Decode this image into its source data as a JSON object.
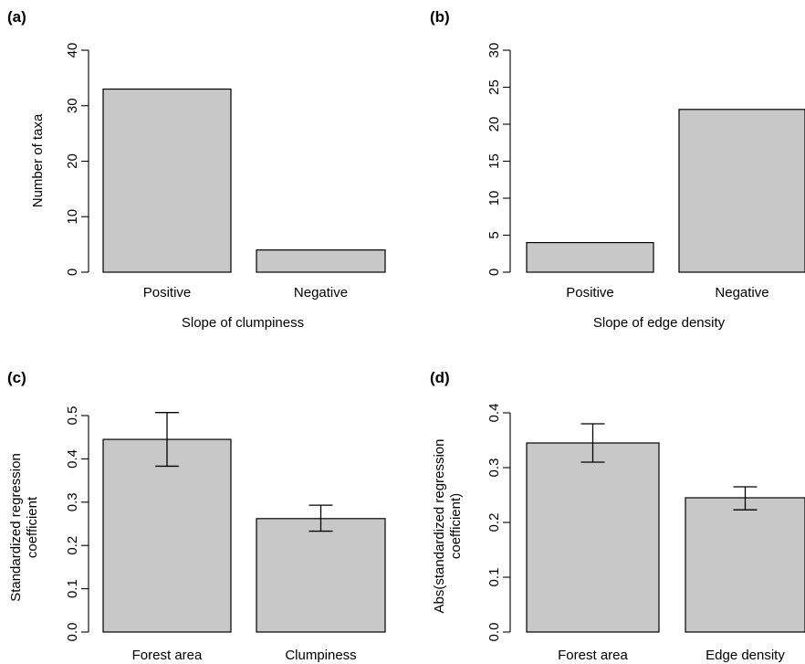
{
  "chart_data": [
    {
      "type": "bar",
      "panel_label": "(a)",
      "categories": [
        "Positive",
        "Negative"
      ],
      "values": [
        33,
        4
      ],
      "xlabel": "Slope of clumpiness",
      "ylabel": "Number of taxa",
      "ylim": [
        0,
        40
      ],
      "yticks": [
        0,
        10,
        20,
        30,
        40
      ],
      "ytick_labels": [
        "0",
        "10",
        "20",
        "30",
        "40"
      ],
      "grid": false,
      "bar_color": "#c8c8c8"
    },
    {
      "type": "bar",
      "panel_label": "(b)",
      "categories": [
        "Positive",
        "Negative"
      ],
      "values": [
        4,
        22
      ],
      "xlabel": "Slope of edge density",
      "ylabel": "",
      "ylim": [
        0,
        30
      ],
      "yticks": [
        0,
        5,
        10,
        15,
        20,
        25,
        30
      ],
      "ytick_labels": [
        "0",
        "5",
        "10",
        "15",
        "20",
        "25",
        "30"
      ],
      "grid": false,
      "bar_color": "#c8c8c8"
    },
    {
      "type": "bar",
      "panel_label": "(c)",
      "categories": [
        "Forest area",
        "Clumpiness"
      ],
      "values": [
        0.445,
        0.262
      ],
      "error_low": [
        0.383,
        0.233
      ],
      "error_high": [
        0.507,
        0.293
      ],
      "xlabel": "",
      "ylabel_lines": [
        "Standardized regression",
        "coefficient"
      ],
      "ylim": [
        0,
        0.5
      ],
      "yticks": [
        0,
        0.1,
        0.2,
        0.3,
        0.4,
        0.5
      ],
      "ytick_labels": [
        "0.0",
        "0.1",
        "0.2",
        "0.3",
        "0.4",
        "0.5"
      ],
      "grid": false,
      "bar_color": "#c8c8c8"
    },
    {
      "type": "bar",
      "panel_label": "(d)",
      "categories": [
        "Forest area",
        "Edge density"
      ],
      "values": [
        0.345,
        0.245
      ],
      "error_low": [
        0.31,
        0.223
      ],
      "error_high": [
        0.38,
        0.265
      ],
      "xlabel": "",
      "ylabel_lines": [
        "Abs(standardized regression",
        "coefficient)"
      ],
      "ylim": [
        0,
        0.4
      ],
      "yticks": [
        0,
        0.1,
        0.2,
        0.3,
        0.4
      ],
      "ytick_labels": [
        "0.0",
        "0.1",
        "0.2",
        "0.3",
        "0.4"
      ],
      "grid": false,
      "bar_color": "#c8c8c8"
    }
  ]
}
